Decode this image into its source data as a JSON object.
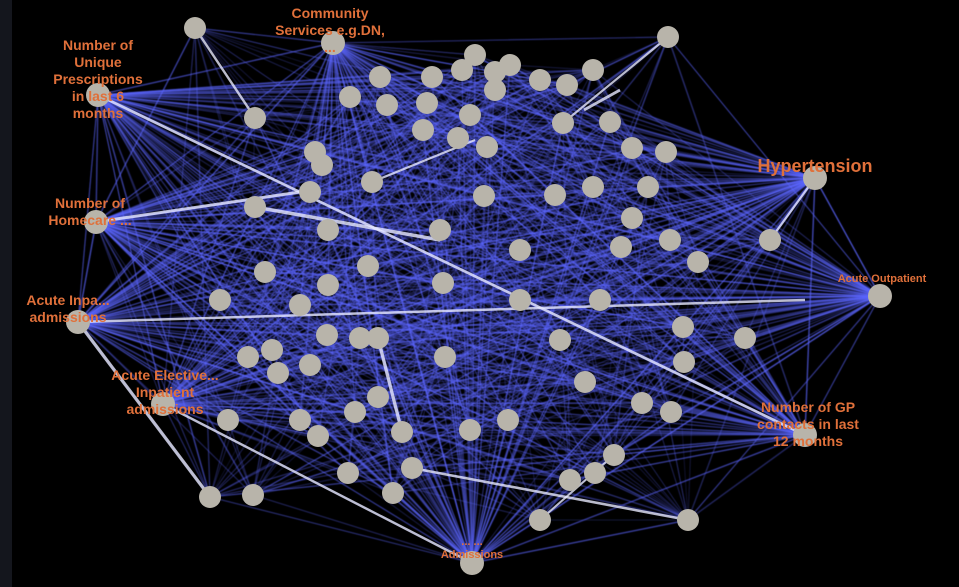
{
  "diagram": {
    "colors": {
      "background": "#000000",
      "edge": "#5c66ff",
      "edge_strong": "#e8eaff",
      "node": "#b8b4aa",
      "label": "#e0703a"
    },
    "node_icon": "grey-circle",
    "labeled_nodes": [
      {
        "id": "community",
        "lines": [
          "Community",
          "Services e.g.DN,",
          "..."
        ]
      },
      {
        "id": "prescriptions",
        "lines": [
          "Number of",
          "Unique",
          "Prescriptions",
          "in last 6",
          "months"
        ]
      },
      {
        "id": "homecare",
        "lines": [
          "Number of",
          "Homecare ..."
        ]
      },
      {
        "id": "acute-inpatient",
        "lines": [
          "Acute Inpa...",
          "admissions"
        ]
      },
      {
        "id": "acute-elective",
        "lines": [
          "Acute Elective...",
          "Inpatient",
          "admissions"
        ]
      },
      {
        "id": "hypertension",
        "lines": [
          "Hypertension"
        ]
      },
      {
        "id": "gp-contacts",
        "lines": [
          "Number of GP",
          "contacts in last",
          "12 months"
        ]
      },
      {
        "id": "outpatient",
        "lines": [
          "Acute Outpatient"
        ]
      },
      {
        "id": "bottom-center",
        "lines": [
          "... ...",
          "Admissions"
        ]
      }
    ],
    "unlabeled_node_count": 82
  }
}
